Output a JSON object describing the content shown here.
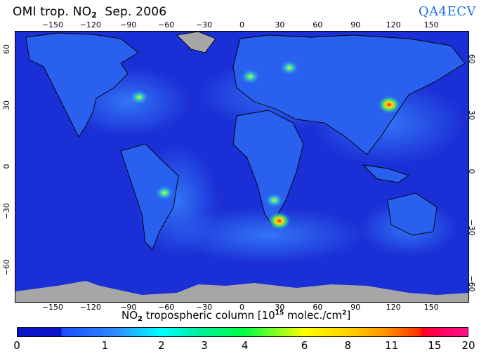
{
  "header": {
    "title_prefix": "OMI trop. NO",
    "title_sub": "2",
    "title_date": "Sep. 2006",
    "brand": "QA4ECV"
  },
  "map": {
    "projection": "equirectangular",
    "lon_range": [
      -180,
      180
    ],
    "lat_range": [
      -70,
      75
    ],
    "ocean_color": "#1b2fd6",
    "no_data_color": "#a6a6a6",
    "border_color": "#000000",
    "x_ticks": [
      "-150",
      "-120",
      "-90",
      "-60",
      "-30",
      "0",
      "30",
      "60",
      "90",
      "120",
      "150"
    ],
    "y_ticks": [
      "60",
      "30",
      "0",
      "-30",
      "-60"
    ],
    "hotspots": [
      {
        "name": "North China Plain",
        "lon": 116,
        "lat": 36,
        "level": "high"
      },
      {
        "name": "Benelux / Ruhr",
        "lon": 6,
        "lat": 51,
        "level": "medium"
      },
      {
        "name": "Moscow",
        "lon": 37,
        "lat": 55.7,
        "level": "medium"
      },
      {
        "name": "Eastern US",
        "lon": -82,
        "lat": 40,
        "level": "medium"
      },
      {
        "name": "Amazon biomass burning",
        "lon": -62,
        "lat": -11,
        "level": "medium"
      },
      {
        "name": "Southern Africa burning",
        "lon": 25,
        "lat": -15,
        "level": "medium"
      },
      {
        "name": "Highveld",
        "lon": 29,
        "lat": -26,
        "level": "high"
      }
    ]
  },
  "colorbar": {
    "label_prefix": "NO",
    "label_sub": "2",
    "label_main": " tropospheric column [10",
    "label_sup": "15",
    "label_unit": " molec./cm",
    "label_sup2": "2",
    "label_end": "]",
    "ticks": [
      {
        "label": "0",
        "pos": 0.0
      },
      {
        "label": "1",
        "pos": 0.195
      },
      {
        "label": "2",
        "pos": 0.32
      },
      {
        "label": "3",
        "pos": 0.415
      },
      {
        "label": "4",
        "pos": 0.505
      },
      {
        "label": "6",
        "pos": 0.637
      },
      {
        "label": "8",
        "pos": 0.733
      },
      {
        "label": "11",
        "pos": 0.83
      },
      {
        "label": "15",
        "pos": 0.925
      },
      {
        "label": "20",
        "pos": 1.0
      }
    ],
    "colors": [
      "#0a14c8",
      "#2f8cff",
      "#00ffff",
      "#00ff40",
      "#ffff00",
      "#ff9000",
      "#ff0020",
      "#ff1090"
    ]
  }
}
